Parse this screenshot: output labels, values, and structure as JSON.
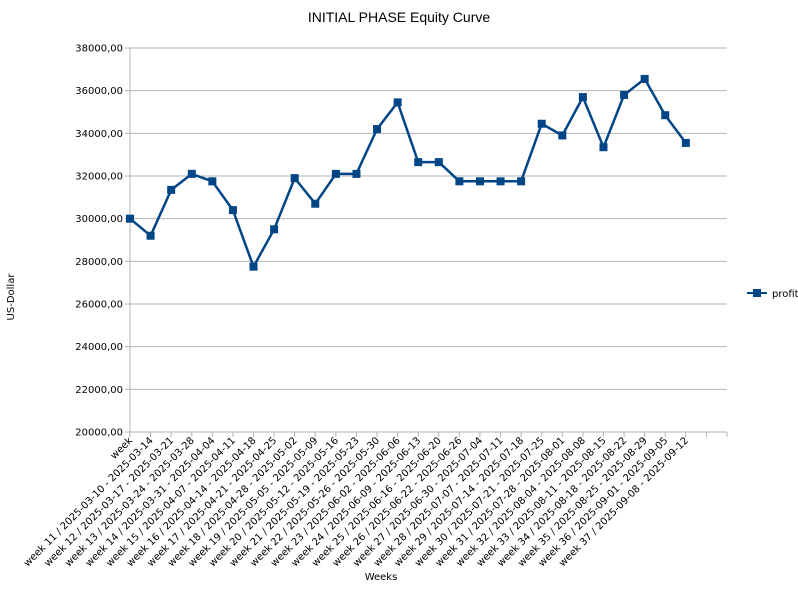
{
  "chart_data": {
    "type": "line",
    "title": "INITIAL PHASE Equity Curve",
    "xlabel": "Weeks",
    "ylabel": "US-Dollar",
    "ylim": [
      20000,
      38000
    ],
    "y_ticks": [
      "20000,00",
      "22000,00",
      "24000,00",
      "26000,00",
      "28000,00",
      "30000,00",
      "32000,00",
      "34000,00",
      "36000,00",
      "38000,00"
    ],
    "grid": "horizontal",
    "legend_position": "right",
    "categories": [
      "week",
      "week 11 / 2025-03-10 - 2025-03-14",
      "week 12 / 2025-03-17 - 2025-03-21",
      "week 13 / 2025-03-24 - 2025-03-28",
      "week 14 / 2025-03-31 - 2025-04-04",
      "week 15 / 2025-04-07 - 2025-04-11",
      "week 16 / 2025-04-14 - 2025-04-18",
      "week 17 / 2025-04-21 - 2025-04-25",
      "week 18 / 2025-04-28 - 2025-05-02",
      "week 19 / 2025-05-05 - 2025-05-09",
      "week 20 / 2025-05-12 - 2025-05-16",
      "week 21 / 2025-05-19 - 2025-05-23",
      "week 22 / 2025-05-26 - 2025-05-30",
      "week 23 / 2025-06-02 - 2025-06-06",
      "week 24 / 2025-06-09 - 2025-06-13",
      "week 25 / 2025-06-16 - 2025-06-20",
      "week 26 / 2025-06-22 - 2025-06-26",
      "week 27 / 2025-06-30 - 2025-07-04",
      "week 28 / 2025-07-07 - 2025-07-11",
      "week 29 / 2025-07-14 - 2025-07-18",
      "week 30 / 2025-07-21 - 2025-07-25",
      "week 31 / 2025-07-28 - 2025-08-01",
      "week 32 / 2025-08-04 - 2025-08-08",
      "week 33 / 2025-08-11 - 2025-08-15",
      "week 34 / 2025-08-18 - 2025-08-22",
      "week 35 / 2025-08-25 - 2025-08-29",
      "week 36 / 2025-09-01 - 2025-09-05",
      "week 37 / 2025-09-08 - 2025-09-12",
      "",
      ""
    ],
    "series": [
      {
        "name": "profit",
        "color": "#004586",
        "values": [
          30000,
          29200,
          31350,
          32100,
          31750,
          30400,
          27750,
          29500,
          31900,
          30700,
          32100,
          32100,
          34200,
          35450,
          32650,
          32650,
          31750,
          31750,
          31750,
          31750,
          34450,
          33900,
          35700,
          33350,
          35800,
          36550,
          34850,
          33550,
          null,
          null
        ]
      }
    ]
  }
}
